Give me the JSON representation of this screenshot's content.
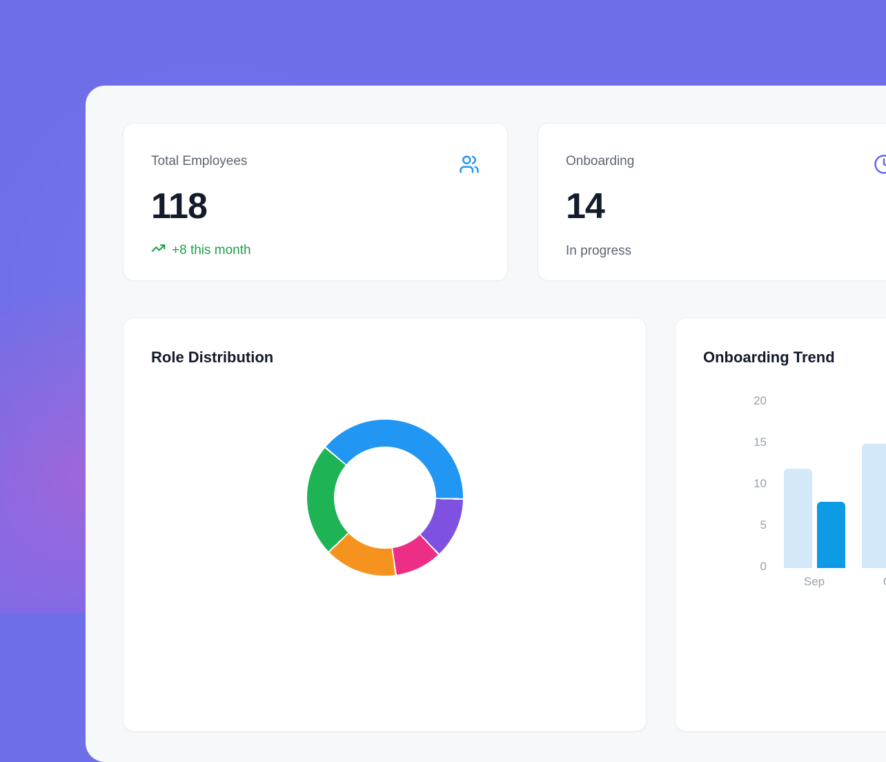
{
  "background": {
    "base_color": "#6e6ee9",
    "blob_color": "#db5cc4"
  },
  "panel": {
    "bg": "#f7f8fa"
  },
  "stat_cards": [
    {
      "label": "Total Employees",
      "value": "118",
      "delta": "+8 this month",
      "delta_color": "#17a34a",
      "icon": "users-icon",
      "icon_color": "#1e96f0"
    },
    {
      "label": "Onboarding",
      "value": "14",
      "sub": "In progress",
      "icon": "clock-icon",
      "icon_color": "#6366f1"
    }
  ],
  "chart_cards": [
    {
      "title": "Role Distribution"
    },
    {
      "title": "Onboarding Trend"
    }
  ],
  "chart_data": [
    {
      "type": "pie",
      "subtype": "doughnut",
      "title": "Role Distribution",
      "legend": "none",
      "start_angle_deg": -50,
      "inner_radius_ratio": 0.65,
      "segments": [
        {
          "name": "segment-blue",
          "color": "#2196f3",
          "degrees": 141,
          "percent": 39.2
        },
        {
          "name": "segment-purple",
          "color": "#7e51e0",
          "degrees": 45.5,
          "percent": 12.6
        },
        {
          "name": "segment-pink",
          "color": "#ec2e87",
          "degrees": 35.5,
          "percent": 9.9
        },
        {
          "name": "segment-orange",
          "color": "#f6931f",
          "degrees": 54,
          "percent": 15.0
        },
        {
          "name": "segment-green",
          "color": "#1eb455",
          "degrees": 84,
          "percent": 23.3
        }
      ]
    },
    {
      "type": "bar",
      "title": "Onboarding Trend",
      "categories": [
        "Sep",
        "Oct"
      ],
      "series": [
        {
          "name": "series-light",
          "color": "#d3e8f8",
          "values": [
            12,
            15
          ]
        },
        {
          "name": "series-dark",
          "color": "#0c9be4",
          "values": [
            8,
            null
          ]
        }
      ],
      "ylim": [
        0,
        20
      ],
      "yticks": [
        0,
        5,
        10,
        15,
        20
      ],
      "grid": false,
      "legend": "none"
    }
  ]
}
